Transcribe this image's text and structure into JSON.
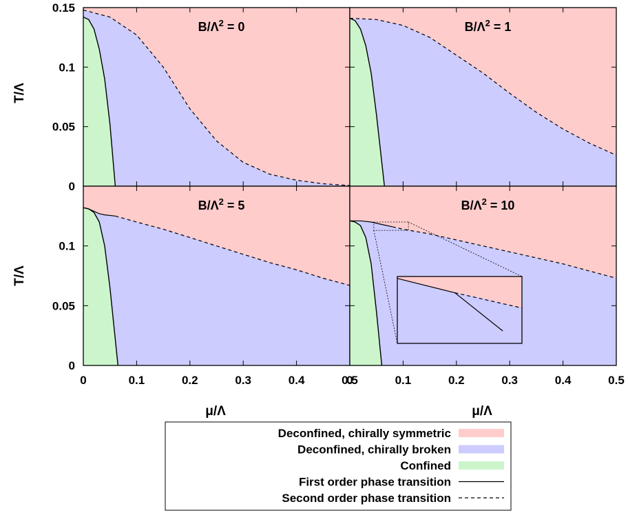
{
  "colors": {
    "chirally_symmetric": "#ffcccc",
    "chirally_broken": "#ccccff",
    "confined": "#ccf5cc",
    "line": "#000000"
  },
  "legend": {
    "items": [
      {
        "label": "Deconfined, chirally symmetric",
        "kind": "fill",
        "color_key": "chirally_symmetric"
      },
      {
        "label": "Deconfined, chirally broken",
        "kind": "fill",
        "color_key": "chirally_broken"
      },
      {
        "label": "Confined",
        "kind": "fill",
        "color_key": "confined"
      },
      {
        "label": "First order phase transition",
        "kind": "solid-line"
      },
      {
        "label": "Second order phase transition",
        "kind": "dashed-line"
      }
    ]
  },
  "chart_data": [
    {
      "type": "area",
      "panel": "top-left",
      "title": "B/Λ² = 0",
      "title_main": "B/Λ",
      "title_sup": "2",
      "title_rest": " = 0",
      "xlabel": "",
      "ylabel": "T/Λ",
      "xlim": [
        0,
        0.5
      ],
      "ylim": [
        0,
        0.15
      ],
      "x_ticks": [],
      "y_ticks": [
        "0",
        "0.05",
        "0.1",
        "0.15"
      ],
      "first_order": [
        [
          0,
          0.142
        ],
        [
          0.01,
          0.14
        ],
        [
          0.02,
          0.132
        ],
        [
          0.03,
          0.115
        ],
        [
          0.04,
          0.09
        ],
        [
          0.05,
          0.052
        ],
        [
          0.06,
          0
        ]
      ],
      "second_order": [
        [
          0,
          0.148
        ],
        [
          0.05,
          0.142
        ],
        [
          0.1,
          0.127
        ],
        [
          0.15,
          0.1
        ],
        [
          0.2,
          0.065
        ],
        [
          0.25,
          0.038
        ],
        [
          0.3,
          0.02
        ],
        [
          0.35,
          0.01
        ],
        [
          0.4,
          0.005
        ],
        [
          0.45,
          0.002
        ],
        [
          0.5,
          0.0005
        ]
      ]
    },
    {
      "type": "area",
      "panel": "top-right",
      "title": "B/Λ² = 1",
      "title_main": "B/Λ",
      "title_sup": "2",
      "title_rest": " = 1",
      "xlabel": "",
      "ylabel": "",
      "xlim": [
        0,
        0.5
      ],
      "ylim": [
        0,
        0.15
      ],
      "x_ticks": [],
      "y_ticks": [],
      "first_order": [
        [
          0,
          0.141
        ],
        [
          0.01,
          0.139
        ],
        [
          0.02,
          0.132
        ],
        [
          0.03,
          0.118
        ],
        [
          0.04,
          0.095
        ],
        [
          0.05,
          0.06
        ],
        [
          0.065,
          0
        ]
      ],
      "second_order": [
        [
          0,
          0.141
        ],
        [
          0.05,
          0.14
        ],
        [
          0.1,
          0.135
        ],
        [
          0.15,
          0.125
        ],
        [
          0.2,
          0.11
        ],
        [
          0.25,
          0.095
        ],
        [
          0.3,
          0.078
        ],
        [
          0.35,
          0.062
        ],
        [
          0.4,
          0.048
        ],
        [
          0.45,
          0.036
        ],
        [
          0.5,
          0.026
        ]
      ]
    },
    {
      "type": "area",
      "panel": "bottom-left",
      "title": "B/Λ² = 5",
      "title_main": "B/Λ",
      "title_sup": "2",
      "title_rest": " = 5",
      "xlabel": "μ/Λ",
      "ylabel": "T/Λ",
      "xlim": [
        0,
        0.5
      ],
      "ylim": [
        0,
        0.15
      ],
      "x_ticks": [
        "0",
        "0.1",
        "0.2",
        "0.3",
        "0.4",
        "0.5"
      ],
      "y_ticks": [
        "0",
        "0.05",
        "0.1"
      ],
      "first_order": [
        [
          0,
          0.132
        ],
        [
          0.01,
          0.131
        ],
        [
          0.02,
          0.128
        ],
        [
          0.03,
          0.12
        ],
        [
          0.04,
          0.1
        ],
        [
          0.05,
          0.065
        ],
        [
          0.065,
          0
        ]
      ],
      "crossover": [
        [
          0,
          0.132
        ],
        [
          0.01,
          0.131
        ],
        [
          0.02,
          0.129
        ],
        [
          0.03,
          0.127
        ],
        [
          0.04,
          0.126
        ],
        [
          0.06,
          0.125
        ]
      ],
      "second_order": [
        [
          0.06,
          0.125
        ],
        [
          0.1,
          0.12
        ],
        [
          0.15,
          0.114
        ],
        [
          0.2,
          0.107
        ],
        [
          0.25,
          0.1
        ],
        [
          0.3,
          0.093
        ],
        [
          0.35,
          0.086
        ],
        [
          0.4,
          0.08
        ],
        [
          0.45,
          0.073
        ],
        [
          0.5,
          0.067
        ]
      ]
    },
    {
      "type": "area",
      "panel": "bottom-right",
      "title": "B/Λ² = 10",
      "title_main": "B/Λ",
      "title_sup": "2",
      "title_rest": " = 10",
      "xlabel": "μ/Λ",
      "ylabel": "",
      "xlim": [
        0,
        0.5
      ],
      "ylim": [
        0,
        0.15
      ],
      "x_ticks": [
        "0",
        "0.1",
        "0.2",
        "0.3",
        "0.4",
        "0.5"
      ],
      "y_ticks": [],
      "first_order": [
        [
          0,
          0.121
        ],
        [
          0.01,
          0.12
        ],
        [
          0.02,
          0.117
        ],
        [
          0.03,
          0.107
        ],
        [
          0.04,
          0.085
        ],
        [
          0.05,
          0.045
        ],
        [
          0.06,
          0
        ]
      ],
      "crossover": [
        [
          0,
          0.121
        ],
        [
          0.02,
          0.121
        ],
        [
          0.04,
          0.12
        ],
        [
          0.06,
          0.118
        ],
        [
          0.08,
          0.116
        ]
      ],
      "second_order": [
        [
          0.08,
          0.116
        ],
        [
          0.1,
          0.114
        ],
        [
          0.15,
          0.11
        ],
        [
          0.2,
          0.105
        ],
        [
          0.25,
          0.1
        ],
        [
          0.3,
          0.095
        ],
        [
          0.35,
          0.09
        ],
        [
          0.4,
          0.085
        ],
        [
          0.45,
          0.079
        ],
        [
          0.5,
          0.073
        ]
      ]
    }
  ]
}
